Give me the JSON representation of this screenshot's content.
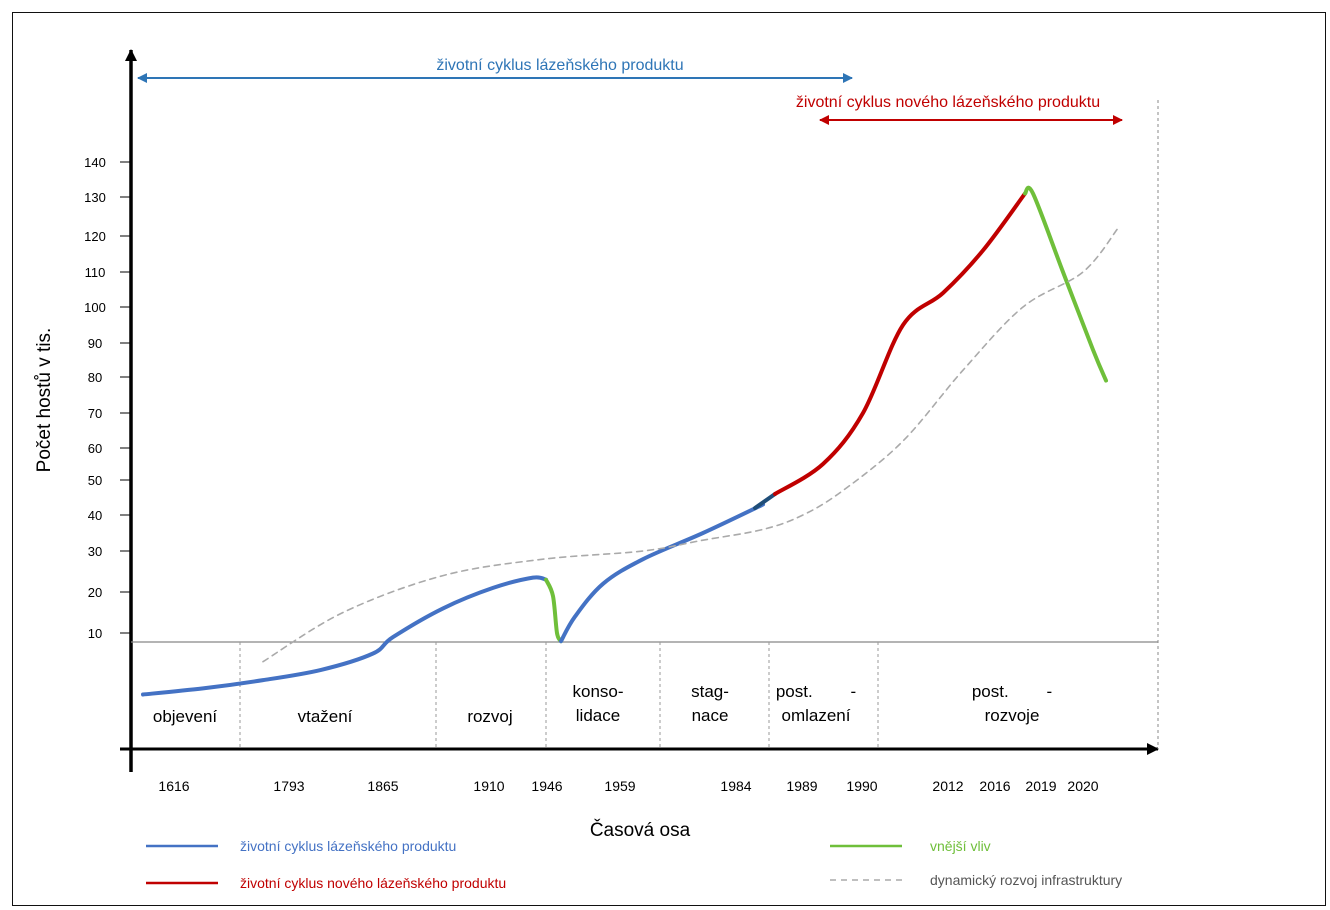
{
  "chart_data": {
    "type": "line",
    "xlabel": "Časová osa",
    "ylabel": "Počet hostů v tis.",
    "y_ticks": [
      10,
      20,
      30,
      40,
      50,
      60,
      70,
      80,
      90,
      100,
      110,
      120,
      130,
      140
    ],
    "x_ticks": [
      "1616",
      "1793",
      "1865",
      "1910",
      "1946",
      "1959",
      "1984",
      "1989",
      "1990",
      "2012",
      "2016",
      "2019",
      "2020"
    ],
    "phases": [
      "objevení",
      "vtažení",
      "rozvoj",
      "konso-\nlidace",
      "stag-\nnace",
      "post.        -\nomlazení",
      "post.        -\nrozvoje"
    ],
    "top_arrows": {
      "old_product": "životní cyklus lázeňského produktu",
      "new_product": "životní cyklus nového lázeňského produktu"
    },
    "legend": [
      {
        "label": "životní cyklus lázeňského produktu",
        "color": "#4472c4",
        "style": "solid"
      },
      {
        "label": "životní cyklus nového lázeňského produktu",
        "color": "#c00000",
        "style": "solid"
      },
      {
        "label": "vnější vliv",
        "color": "#6fbf3a",
        "style": "solid"
      },
      {
        "label": "dynamický rozvoj infrastruktury",
        "color": "#aaaaaa",
        "style": "dashed"
      }
    ],
    "series": [
      {
        "name": "životní cyklus lázeňského produktu",
        "color": "#4472c4",
        "points": [
          [
            0,
            -5
          ],
          [
            60,
            -3.5
          ],
          [
            120,
            -1.5
          ],
          [
            178,
            1
          ],
          [
            230,
            5
          ],
          [
            250,
            9
          ],
          [
            300,
            16
          ],
          [
            350,
            21
          ],
          [
            390,
            23.5
          ],
          [
            403,
            23
          ]
        ]
      },
      {
        "name": "vnější vliv",
        "color": "#6fbf3a",
        "points": [
          [
            403,
            23
          ],
          [
            410,
            19
          ],
          [
            414,
            10
          ],
          [
            418,
            8
          ]
        ]
      },
      {
        "name": "životní cyklus lázeňského produktu",
        "color": "#4472c4",
        "points": [
          [
            418,
            8
          ],
          [
            432,
            14
          ],
          [
            460,
            22
          ],
          [
            500,
            28
          ],
          [
            560,
            35
          ],
          [
            620,
            43
          ]
        ]
      },
      {
        "name": "životní cyklus lázeňského produktu",
        "color": "#1f4e79",
        "points": [
          [
            612,
            42
          ],
          [
            622,
            44
          ],
          [
            632,
            46
          ]
        ]
      },
      {
        "name": "životní cyklus nového lázeňského produktu",
        "color": "#c00000",
        "points": [
          [
            632,
            46
          ],
          [
            680,
            55
          ],
          [
            720,
            70
          ],
          [
            760,
            95
          ],
          [
            800,
            104
          ],
          [
            840,
            116
          ],
          [
            882,
            131
          ]
        ]
      },
      {
        "name": "vnější vliv",
        "color": "#6fbf3a",
        "points": [
          [
            882,
            131
          ],
          [
            890,
            131
          ],
          [
            920,
            110
          ],
          [
            950,
            88
          ],
          [
            963,
            79
          ]
        ]
      },
      {
        "name": "dynamický rozvoj infrastruktury",
        "color": "#aaaaaa",
        "dashed": true,
        "points": [
          [
            120,
            3
          ],
          [
            200,
            15
          ],
          [
            300,
            24
          ],
          [
            400,
            28
          ],
          [
            500,
            30
          ],
          [
            560,
            33
          ],
          [
            620,
            36
          ],
          [
            660,
            40
          ],
          [
            700,
            47
          ],
          [
            760,
            62
          ],
          [
            820,
            82
          ],
          [
            880,
            100
          ],
          [
            940,
            110
          ],
          [
            975,
            122
          ]
        ]
      }
    ]
  }
}
